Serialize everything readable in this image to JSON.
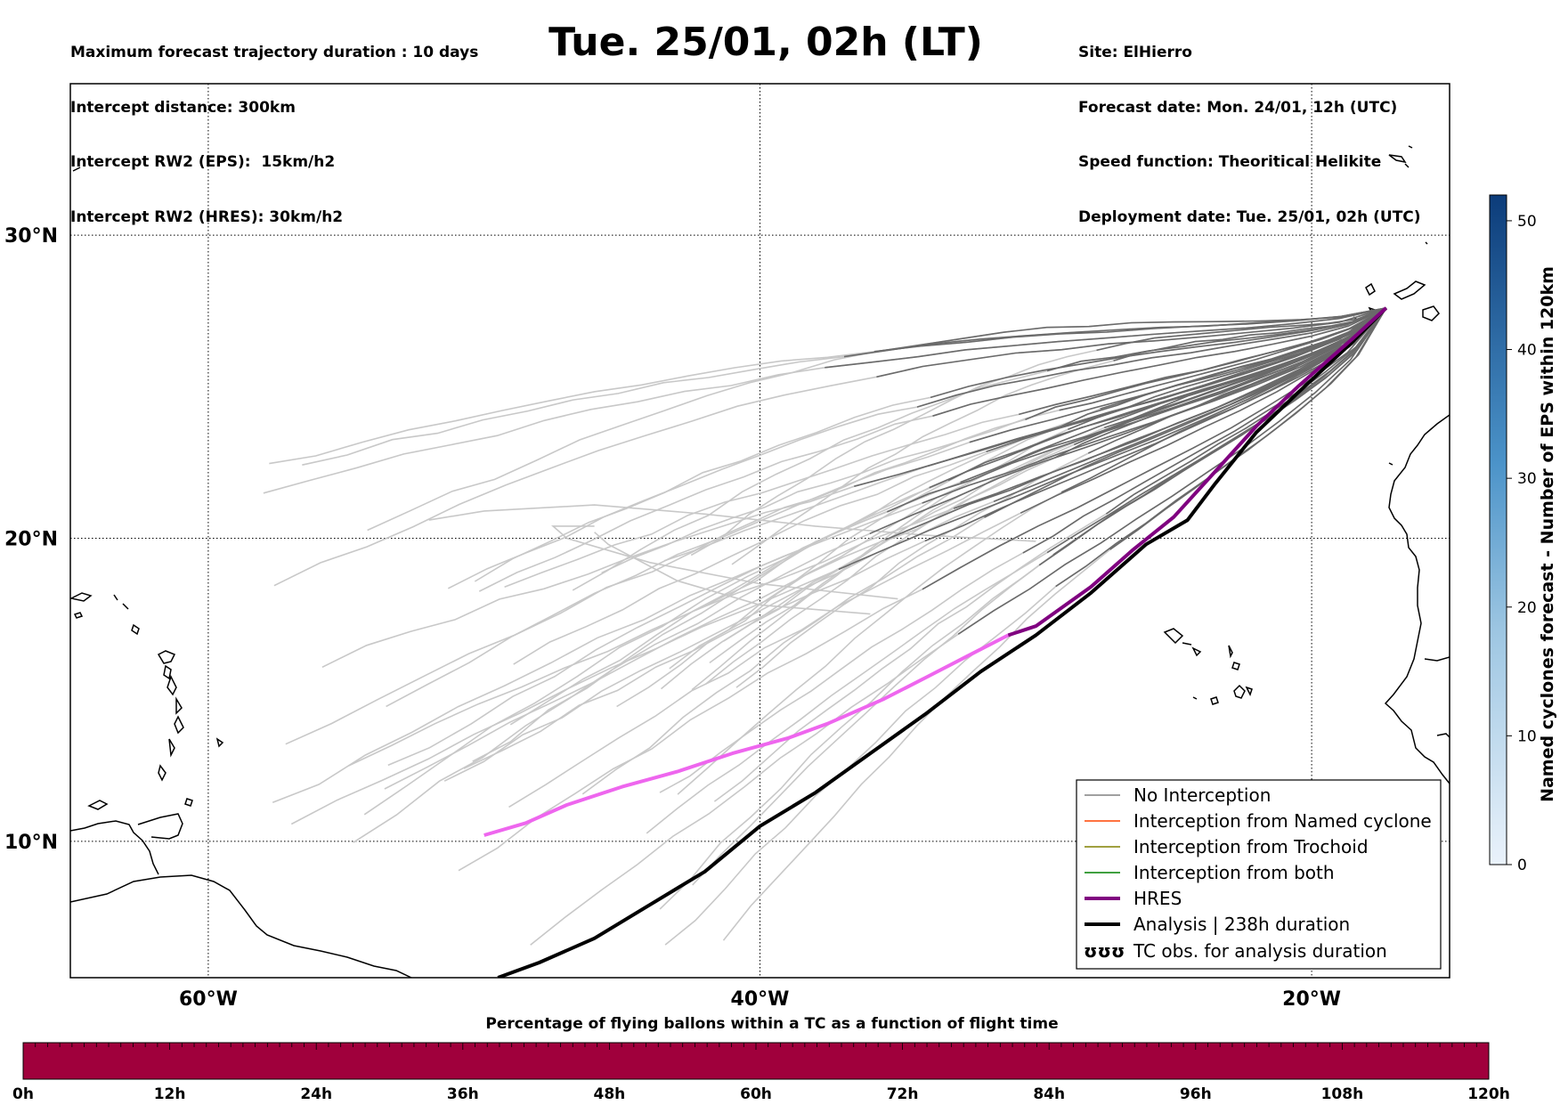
{
  "header": {
    "left_lines": [
      "Maximum forecast trajectory duration : 10 days",
      "Intercept distance: 300km",
      "Intercept RW2 (EPS):  15km/h2",
      "Intercept RW2 (HRES): 30km/h2"
    ],
    "title": "Tue. 25/01, 02h (LT)",
    "right_lines": [
      "Site: ElHierro",
      "Forecast date: Mon. 24/01, 12h (UTC)",
      "Speed function: Theoritical Helikite",
      "Deployment date: Tue. 25/01, 02h (UTC)"
    ]
  },
  "map": {
    "lon_range": [
      -65,
      -15
    ],
    "lat_range": [
      5.5,
      35
    ],
    "lon_ticks": [
      {
        "lon": -60,
        "label": "60°W"
      },
      {
        "lon": -40,
        "label": "40°W"
      },
      {
        "lon": -20,
        "label": "20°W"
      }
    ],
    "lat_ticks": [
      {
        "lat": 30,
        "label": "30°N"
      },
      {
        "lat": 20,
        "label": "20°N"
      },
      {
        "lat": 10,
        "label": "10°N"
      }
    ],
    "grid": "dotted",
    "colors": {
      "no_interception_dark": "#666666",
      "no_interception_light": "#cccccc",
      "named_cyclone": "#ff4500",
      "trochoid": "#808000",
      "both": "#008000",
      "hres": "#800080",
      "hres_late": "#ee66ee",
      "analysis": "#000000"
    },
    "hres_track": [
      [
        -17.3,
        27.6
      ],
      [
        -18.5,
        26.6
      ],
      [
        -20.5,
        25.0
      ],
      [
        -22.0,
        23.7
      ],
      [
        -23.5,
        22.2
      ],
      [
        -25.0,
        20.7
      ],
      [
        -26.5,
        19.6
      ],
      [
        -28.0,
        18.4
      ],
      [
        -30.0,
        17.1
      ],
      [
        -31.0,
        16.8
      ],
      [
        -32.5,
        16.1
      ],
      [
        -34.0,
        15.4
      ],
      [
        -35.5,
        14.7
      ],
      [
        -37.5,
        13.9
      ],
      [
        -39.0,
        13.4
      ],
      [
        -41.0,
        12.9
      ],
      [
        -43.0,
        12.3
      ],
      [
        -45.0,
        11.8
      ],
      [
        -47.0,
        11.2
      ],
      [
        -48.5,
        10.6
      ],
      [
        -50.0,
        10.2
      ]
    ],
    "hres_switch_index": 9,
    "analysis_track": [
      [
        -17.3,
        27.6
      ],
      [
        -18.5,
        26.5
      ],
      [
        -20.5,
        24.8
      ],
      [
        -22.0,
        23.5
      ],
      [
        -23.5,
        21.8
      ],
      [
        -24.5,
        20.6
      ],
      [
        -26.0,
        19.8
      ],
      [
        -28.0,
        18.2
      ],
      [
        -30.0,
        16.8
      ],
      [
        -32.0,
        15.6
      ],
      [
        -34.0,
        14.2
      ],
      [
        -36.0,
        12.9
      ],
      [
        -38.0,
        11.6
      ],
      [
        -40.0,
        10.5
      ],
      [
        -42.0,
        9.0
      ],
      [
        -44.0,
        7.9
      ],
      [
        -46.0,
        6.8
      ],
      [
        -48.0,
        6.0
      ],
      [
        -49.5,
        5.5
      ]
    ]
  },
  "legend": {
    "items": [
      {
        "label": "No Interception",
        "style": "grey"
      },
      {
        "label": "Interception from Named cyclone",
        "style": "orange"
      },
      {
        "label": "Interception from Trochoid",
        "style": "olive"
      },
      {
        "label": "Interception from both",
        "style": "green"
      },
      {
        "label": "HRES",
        "style": "purple"
      },
      {
        "label": "Analysis | 238h duration",
        "style": "black"
      },
      {
        "label": "TC obs. for analysis duration",
        "style": "symbol"
      }
    ],
    "symbol_text": "ʊʊʊ"
  },
  "colorbar": {
    "title": "Named cyclones forecast - Number of EPS within 120km",
    "ticks": [
      0,
      10,
      20,
      30,
      40,
      50
    ],
    "max": 52,
    "color_low": "#e3edf8",
    "color_high": "#0c3c7a"
  },
  "bottom_bar": {
    "title": "Percentage of flying ballons within a TC as a function of flight time",
    "color": "#a0003c",
    "ticks": [
      "0h",
      "12h",
      "24h",
      "36h",
      "48h",
      "60h",
      "72h",
      "84h",
      "96h",
      "108h",
      "120h"
    ]
  }
}
